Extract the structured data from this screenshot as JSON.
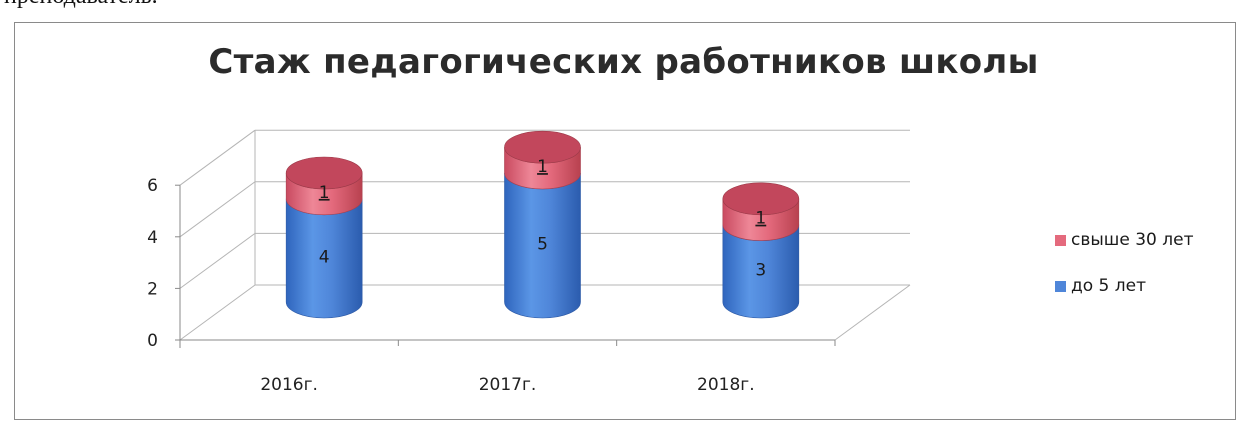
{
  "page": {
    "preceding_text": "преподаватель."
  },
  "chart_data": {
    "type": "bar",
    "stacked": true,
    "style": "3d-cylinder",
    "title": "Стаж педагогических работников школы",
    "categories": [
      "2016г.",
      "2017г.",
      "2018г."
    ],
    "series": [
      {
        "name": "до 5 лет",
        "values": [
          4,
          5,
          3
        ],
        "labels": [
          "4",
          "5",
          "3"
        ],
        "color": "#4f86d9"
      },
      {
        "name": "свыше 30 лет",
        "values": [
          1,
          1,
          1
        ],
        "labels": [
          "1",
          "1",
          "1"
        ],
        "color": "#e46a7d"
      }
    ],
    "yticks": [
      "0",
      "2",
      "4",
      "6"
    ],
    "ylim": [
      0,
      6
    ],
    "grid": true,
    "legend": "right",
    "legend_order": [
      "свыше 30 лет",
      "до 5 лет"
    ]
  }
}
